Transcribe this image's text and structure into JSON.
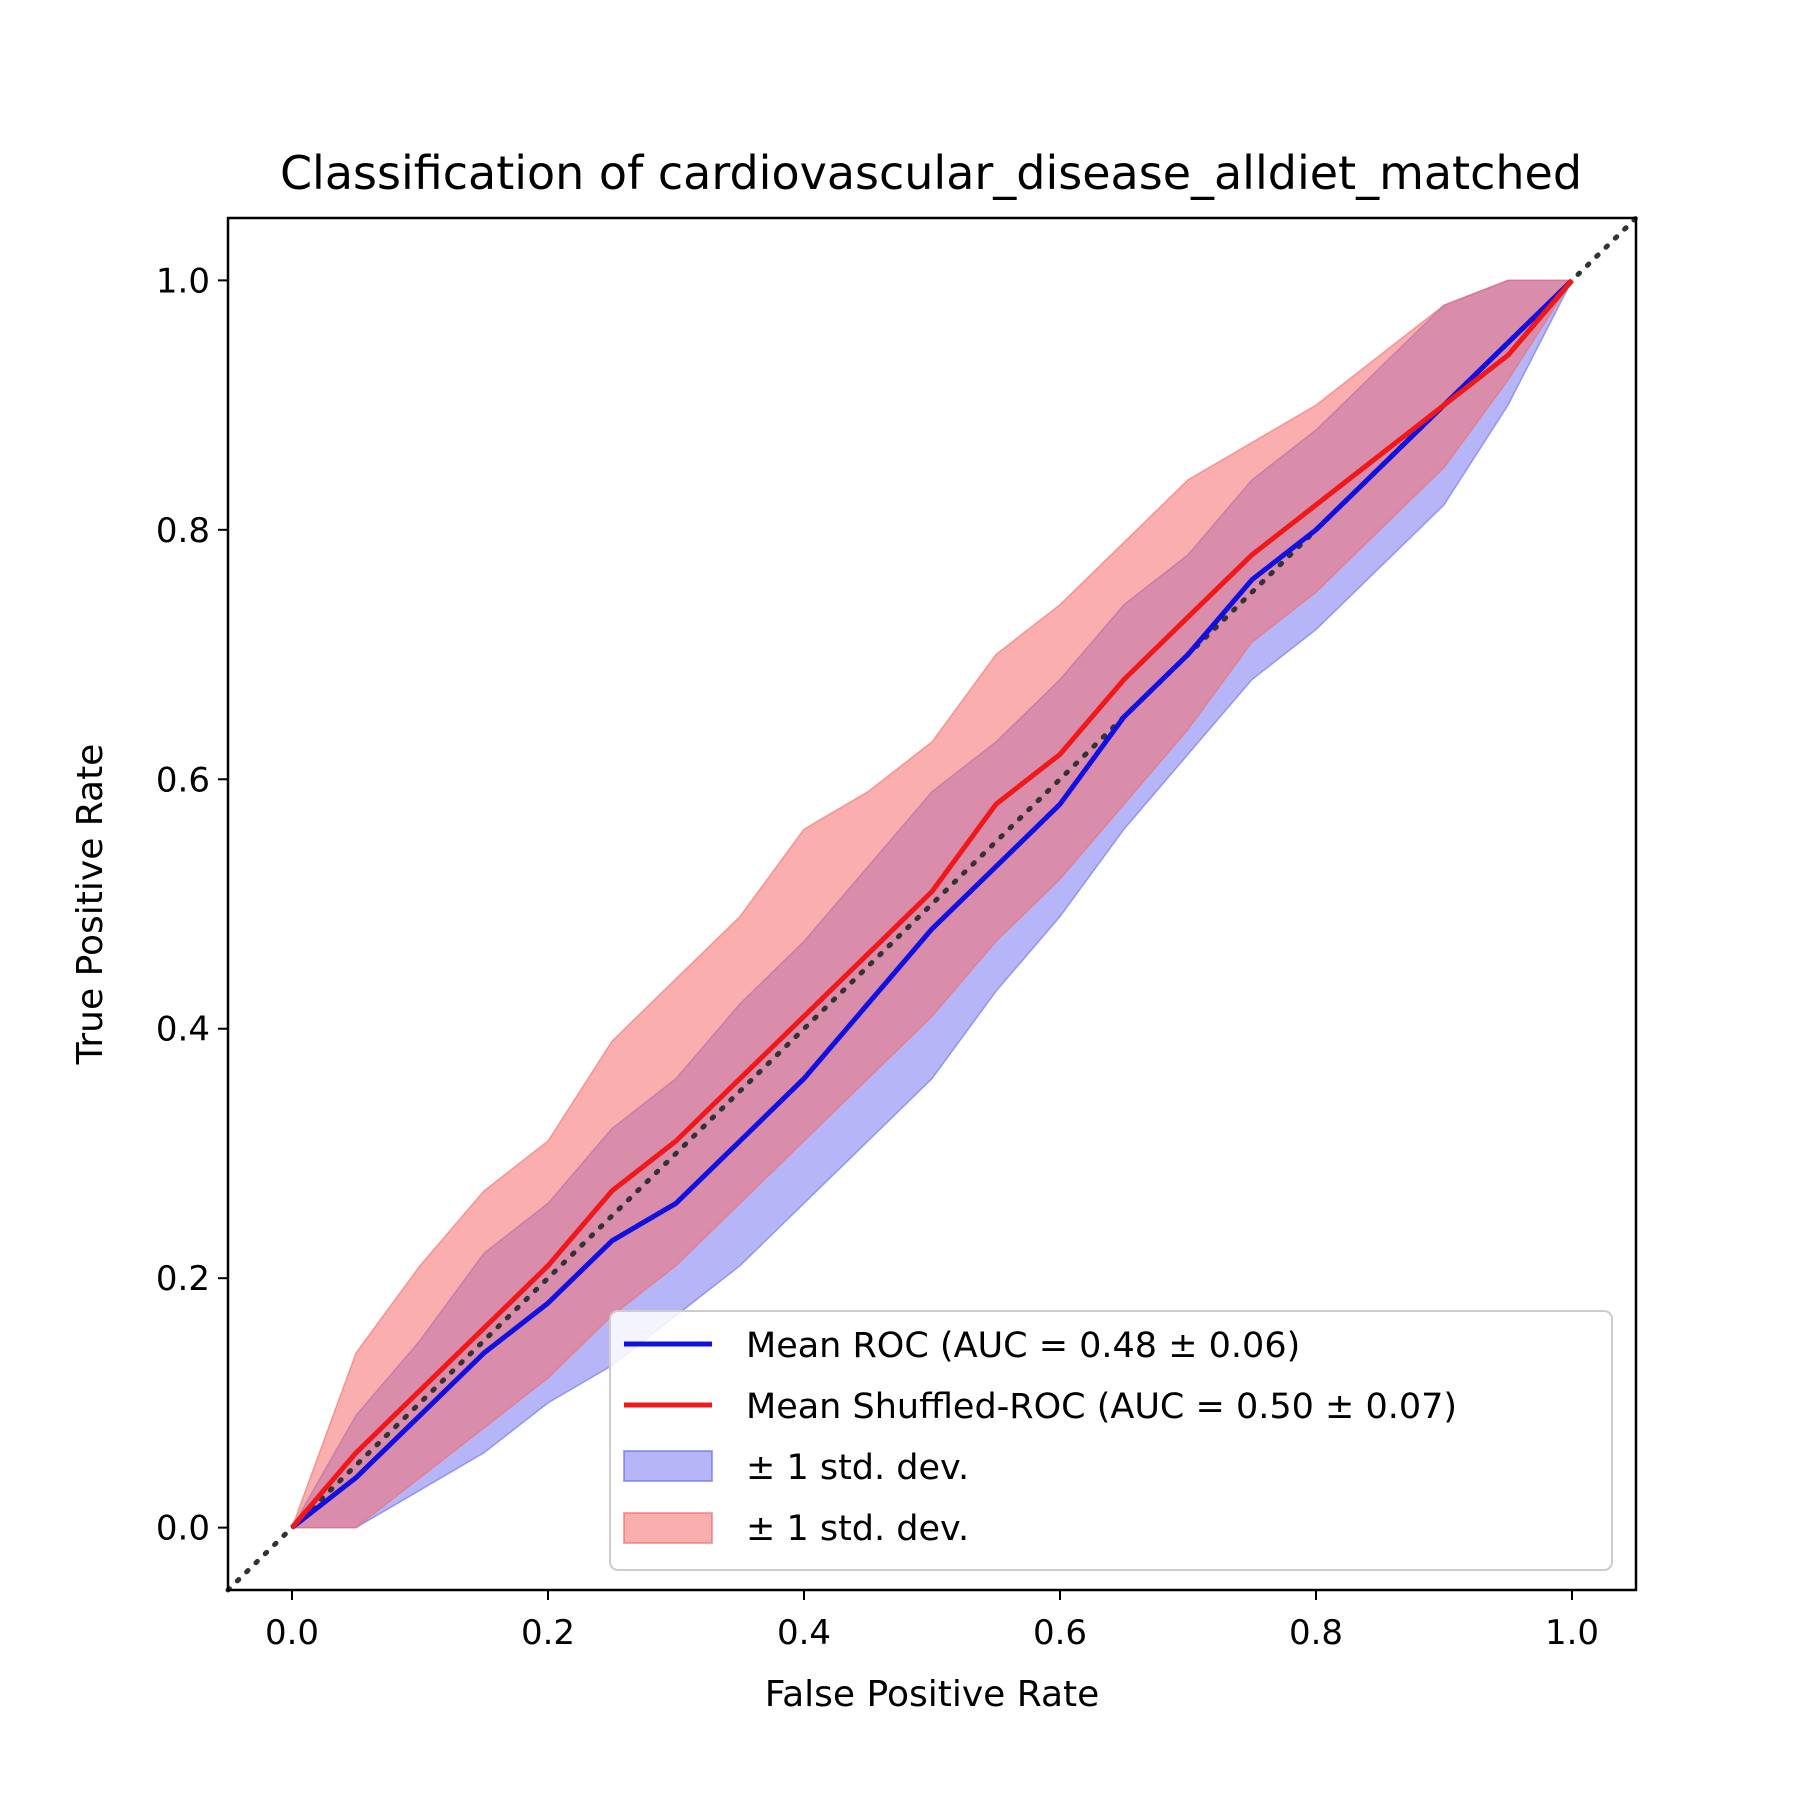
{
  "chart_data": {
    "type": "line",
    "title": "Classification of cardiovascular_disease_alldiet_matched",
    "xlabel": "False Positive Rate",
    "ylabel": "True Positive Rate",
    "xlim": [
      -0.05,
      1.05
    ],
    "ylim": [
      -0.05,
      1.05
    ],
    "xticks": [
      "0.0",
      "0.2",
      "0.4",
      "0.6",
      "0.8",
      "1.0"
    ],
    "yticks": [
      "0.0",
      "0.2",
      "0.4",
      "0.6",
      "0.8",
      "1.0"
    ],
    "grid": false,
    "legend_position": "lower right",
    "colors": {
      "mean_roc": "#1010e0",
      "shuffled_roc": "#f01818",
      "roc_band": "#6b6bf0",
      "shuffled_band": "#f56b6b",
      "chance": "#333333"
    },
    "legend": [
      "Mean ROC (AUC = 0.48 ± 0.06)",
      "Mean Shuffled-ROC (AUC = 0.50 ± 0.07)",
      "± 1 std. dev.",
      "± 1 std. dev."
    ],
    "x": [
      0,
      0.05,
      0.1,
      0.15,
      0.2,
      0.25,
      0.3,
      0.35,
      0.4,
      0.45,
      0.5,
      0.55,
      0.6,
      0.65,
      0.7,
      0.75,
      0.8,
      0.85,
      0.9,
      0.95,
      1.0
    ],
    "series": [
      {
        "name": "Mean ROC (AUC = 0.48 ± 0.06)",
        "values": [
          0,
          0.04,
          0.09,
          0.14,
          0.18,
          0.23,
          0.26,
          0.31,
          0.36,
          0.42,
          0.48,
          0.53,
          0.58,
          0.65,
          0.7,
          0.76,
          0.8,
          0.85,
          0.9,
          0.95,
          1.0
        ],
        "std_lower": [
          0,
          0,
          0.03,
          0.06,
          0.1,
          0.13,
          0.17,
          0.21,
          0.26,
          0.31,
          0.36,
          0.43,
          0.49,
          0.56,
          0.62,
          0.68,
          0.72,
          0.77,
          0.82,
          0.9,
          1.0
        ],
        "std_upper": [
          0,
          0.09,
          0.15,
          0.22,
          0.26,
          0.32,
          0.36,
          0.42,
          0.47,
          0.53,
          0.59,
          0.63,
          0.68,
          0.74,
          0.78,
          0.84,
          0.88,
          0.93,
          0.98,
          1.0,
          1.0
        ]
      },
      {
        "name": "Mean Shuffled-ROC (AUC = 0.50 ± 0.07)",
        "values": [
          0,
          0.06,
          0.11,
          0.16,
          0.21,
          0.27,
          0.31,
          0.36,
          0.41,
          0.46,
          0.51,
          0.58,
          0.62,
          0.68,
          0.73,
          0.78,
          0.82,
          0.86,
          0.9,
          0.94,
          1.0
        ],
        "std_lower": [
          0,
          0,
          0.04,
          0.08,
          0.12,
          0.17,
          0.21,
          0.26,
          0.31,
          0.36,
          0.41,
          0.47,
          0.52,
          0.58,
          0.64,
          0.71,
          0.75,
          0.8,
          0.85,
          0.92,
          1.0
        ],
        "std_upper": [
          0,
          0.14,
          0.21,
          0.27,
          0.31,
          0.39,
          0.44,
          0.49,
          0.56,
          0.59,
          0.63,
          0.7,
          0.74,
          0.79,
          0.84,
          0.87,
          0.9,
          0.94,
          0.98,
          1.0,
          1.0
        ]
      }
    ]
  }
}
